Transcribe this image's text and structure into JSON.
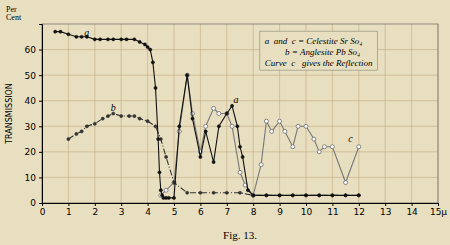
{
  "chart_data": {
    "type": "line",
    "title": "Fig. 13.",
    "y_label": "TRANSMISSION",
    "y_unit_label": "Per\nCent",
    "legend_text": [
      "a  and  c = Celestite Sr So₄",
      "         b = Anglesite Pb So₄",
      "Curve  c   gives the Reflection"
    ],
    "annotations": [
      {
        "text": "a",
        "x": 1.6,
        "y": 65.5
      },
      {
        "text": "b",
        "x": 2.6,
        "y": 36
      },
      {
        "text": "a",
        "x": 7.25,
        "y": 39
      },
      {
        "text": "c",
        "x": 11.6,
        "y": 24
      }
    ],
    "xlim": [
      0,
      15
    ],
    "ylim": [
      0,
      70
    ],
    "xticks": [
      0,
      1,
      2,
      3,
      4,
      5,
      6,
      7,
      8,
      9,
      10,
      11,
      12,
      13,
      14,
      {
        "value": 15,
        "label": "15μ"
      }
    ],
    "yticks": [
      0,
      10,
      20,
      30,
      40,
      50,
      60
    ],
    "grid": true,
    "series": [
      {
        "color": "#111111",
        "marker": "dot",
        "line_style": "solid",
        "x": [
          0.5,
          0.7,
          1.0,
          1.3,
          1.5,
          1.7,
          2.0,
          2.2,
          2.5,
          2.7,
          3.0,
          3.2,
          3.5,
          3.7,
          3.9,
          4.0,
          4.1,
          4.2,
          4.3,
          4.4,
          4.45,
          4.5,
          4.55,
          4.6,
          4.7,
          4.8,
          5.0,
          5.2,
          5.5,
          5.7,
          6.0,
          6.2,
          6.5,
          6.7,
          7.0,
          7.2,
          7.4,
          7.5,
          7.6,
          7.8,
          8.0,
          8.5,
          9.0,
          9.5,
          10.0,
          10.5,
          11.0,
          11.5,
          12.0
        ],
        "values": [
          67,
          67,
          66,
          65,
          65,
          65,
          64,
          64,
          64,
          64,
          64,
          64,
          64,
          63,
          62,
          61,
          60,
          55,
          45,
          25,
          12,
          5,
          3,
          2,
          2,
          2,
          2,
          30,
          50,
          33,
          18,
          28,
          16,
          30,
          35,
          38,
          30,
          22,
          18,
          5,
          3,
          3,
          3,
          3,
          3,
          3,
          3,
          3,
          3
        ]
      },
      {
        "color": "#333333",
        "marker": "dot",
        "line_style": "dashdot",
        "x": [
          1.0,
          1.3,
          1.5,
          1.7,
          2.0,
          2.3,
          2.5,
          2.7,
          3.0,
          3.3,
          3.5,
          3.7,
          4.0,
          4.3,
          4.5,
          4.7,
          5.0,
          5.5,
          6.0,
          6.5,
          7.0,
          7.5,
          8.0,
          8.5,
          9.0,
          9.5,
          10.0,
          10.5,
          11.0,
          11.5,
          12.0
        ],
        "values": [
          25,
          27,
          28,
          30,
          31,
          33,
          34,
          35,
          34,
          34,
          34,
          33,
          32,
          30,
          25,
          18,
          8,
          4,
          4,
          4,
          4,
          4,
          3,
          3,
          3,
          3,
          3,
          3,
          3,
          3,
          3
        ]
      },
      {
        "color": "#777777",
        "marker": "open_circle",
        "line_style": "solid",
        "x": [
          4.5,
          4.7,
          5.0,
          5.2,
          5.5,
          5.7,
          6.0,
          6.2,
          6.5,
          6.7,
          7.0,
          7.2,
          7.5,
          7.7,
          8.0,
          8.3,
          8.5,
          8.7,
          9.0,
          9.2,
          9.5,
          9.7,
          10.0,
          10.3,
          10.5,
          10.7,
          11.0,
          11.5,
          12.0
        ],
        "values": [
          3,
          5,
          8,
          28,
          50,
          35,
          20,
          30,
          37,
          35,
          35,
          30,
          12,
          7,
          3,
          15,
          32,
          28,
          32,
          28,
          22,
          30,
          30,
          25,
          20,
          22,
          22,
          8,
          22
        ]
      }
    ]
  }
}
